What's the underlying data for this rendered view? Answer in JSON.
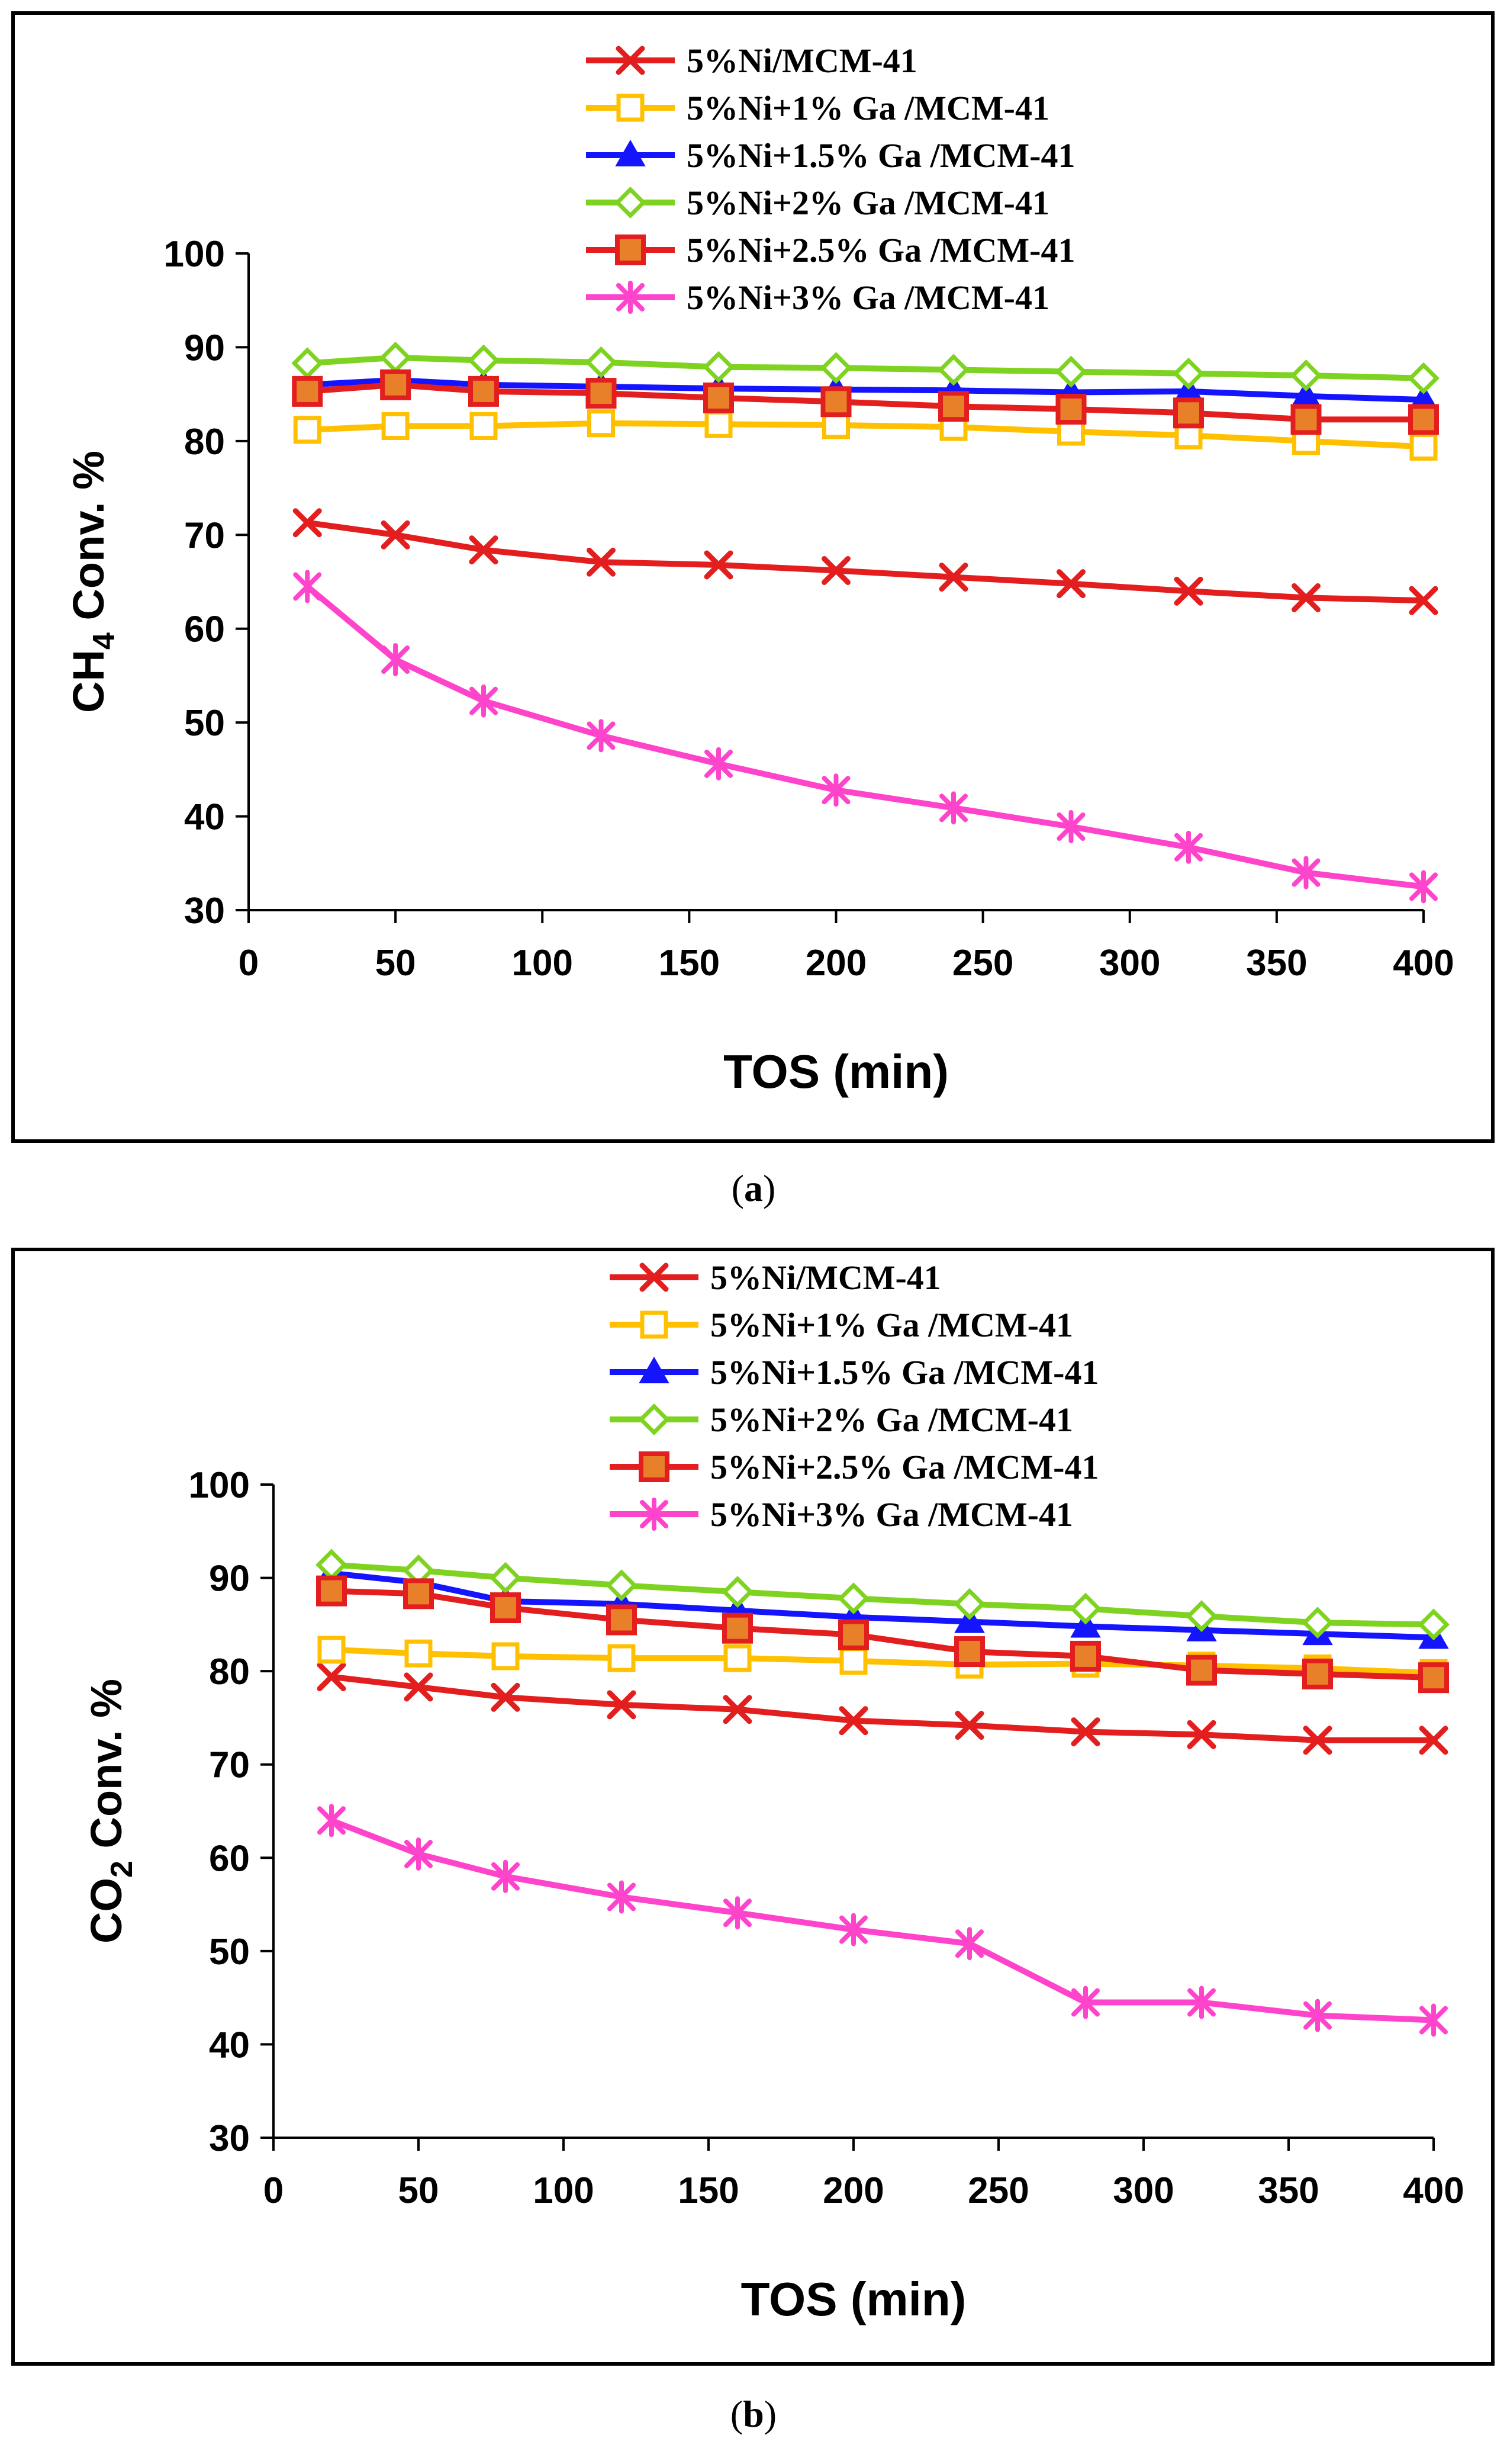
{
  "chart_data": [
    {
      "type": "line",
      "panel": "a",
      "caption_open": "(",
      "caption_letter": "a",
      "caption_close": ")",
      "xlabel": "TOS (min)",
      "ylabel_main": "CH",
      "ylabel_sub": "4",
      "ylabel_rest": " Conv. %",
      "xlim": [
        0,
        400
      ],
      "ylim": [
        30,
        100
      ],
      "xticks": [
        0,
        50,
        100,
        150,
        200,
        250,
        300,
        350,
        400
      ],
      "yticks": [
        30,
        40,
        50,
        60,
        70,
        80,
        90,
        100
      ],
      "x": [
        20,
        50,
        80,
        120,
        160,
        200,
        240,
        280,
        320,
        360,
        400
      ],
      "series": [
        {
          "name": "5%Ni/MCM-41",
          "color": "#e31e1e",
          "marker": "x",
          "values": [
            71.3,
            70.0,
            68.4,
            67.1,
            66.8,
            66.2,
            65.5,
            64.8,
            64.0,
            63.3,
            63.0
          ]
        },
        {
          "name": "5%Ni+1% Ga /MCM-41",
          "color": "#ffc000",
          "marker": "square-open",
          "values": [
            81.2,
            81.6,
            81.6,
            81.9,
            81.8,
            81.7,
            81.5,
            81.0,
            80.6,
            80.0,
            79.4
          ]
        },
        {
          "name": "5%Ni+1.5% Ga /MCM-41",
          "color": "#1414ff",
          "marker": "triangle",
          "values": [
            86.0,
            86.5,
            86.0,
            85.8,
            85.6,
            85.5,
            85.4,
            85.2,
            85.3,
            84.8,
            84.4
          ]
        },
        {
          "name": "5%Ni+2% Ga /MCM-41",
          "color": "#7ed321",
          "marker": "diamond-open",
          "values": [
            88.3,
            88.9,
            88.6,
            88.4,
            87.9,
            87.8,
            87.6,
            87.4,
            87.2,
            87.0,
            86.7
          ]
        },
        {
          "name": "5%Ni+2.5% Ga /MCM-41",
          "color": "#e31e1e",
          "marker": "square-filled",
          "values": [
            85.3,
            86.0,
            85.3,
            85.1,
            84.6,
            84.2,
            83.7,
            83.4,
            83.0,
            82.3,
            82.3
          ]
        },
        {
          "name": "5%Ni+3% Ga /MCM-41",
          "color": "#ff44cc",
          "marker": "star",
          "values": [
            64.5,
            56.7,
            52.3,
            48.6,
            45.6,
            42.8,
            40.9,
            38.9,
            36.7,
            34.0,
            32.5
          ]
        }
      ]
    },
    {
      "type": "line",
      "panel": "b",
      "caption_open": "(",
      "caption_letter": "b",
      "caption_close": ")",
      "xlabel": "TOS (min)",
      "ylabel_main": "CO",
      "ylabel_sub": "2",
      "ylabel_rest": " Conv. %",
      "xlim": [
        0,
        400
      ],
      "ylim": [
        30,
        100
      ],
      "xticks": [
        0,
        50,
        100,
        150,
        200,
        250,
        300,
        350,
        400
      ],
      "yticks": [
        30,
        40,
        50,
        60,
        70,
        80,
        90,
        100
      ],
      "x": [
        20,
        50,
        80,
        120,
        160,
        200,
        240,
        280,
        320,
        360,
        400
      ],
      "series": [
        {
          "name": "5%Ni/MCM-41",
          "color": "#e31e1e",
          "marker": "x",
          "values": [
            79.4,
            78.3,
            77.2,
            76.4,
            75.9,
            74.7,
            74.2,
            73.5,
            73.2,
            72.6,
            72.6
          ]
        },
        {
          "name": "5%Ni+1% Ga /MCM-41",
          "color": "#ffc000",
          "marker": "square-open",
          "values": [
            82.3,
            81.9,
            81.6,
            81.4,
            81.4,
            81.1,
            80.7,
            80.8,
            80.6,
            80.3,
            79.8
          ]
        },
        {
          "name": "5%Ni+1.5% Ga /MCM-41",
          "color": "#1414ff",
          "marker": "triangle",
          "values": [
            90.5,
            89.5,
            87.5,
            87.2,
            86.5,
            85.8,
            85.3,
            84.8,
            84.4,
            84.0,
            83.6
          ]
        },
        {
          "name": "5%Ni+2% Ga /MCM-41",
          "color": "#7ed321",
          "marker": "diamond-open",
          "values": [
            91.4,
            90.8,
            90.0,
            89.2,
            88.5,
            87.8,
            87.2,
            86.7,
            85.9,
            85.2,
            85.0
          ]
        },
        {
          "name": "5%Ni+2.5% Ga /MCM-41",
          "color": "#e31e1e",
          "marker": "square-filled",
          "values": [
            88.6,
            88.3,
            86.8,
            85.5,
            84.6,
            83.9,
            82.1,
            81.6,
            80.1,
            79.7,
            79.3
          ]
        },
        {
          "name": "5%Ni+3% Ga /MCM-41",
          "color": "#ff44cc",
          "marker": "star",
          "values": [
            64.0,
            60.4,
            58.0,
            55.8,
            54.1,
            52.3,
            50.8,
            44.5,
            44.5,
            43.1,
            42.6
          ]
        }
      ]
    }
  ]
}
